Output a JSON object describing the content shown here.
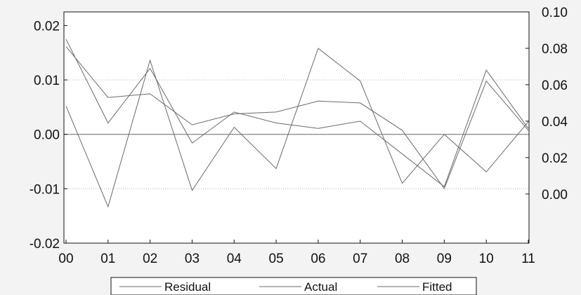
{
  "chart_data": {
    "type": "line",
    "title": "",
    "categories": [
      "00",
      "01",
      "02",
      "03",
      "04",
      "05",
      "06",
      "07",
      "08",
      "09",
      "10",
      "11"
    ],
    "left_axis": {
      "ticks": [
        "-0.02",
        "-0.01",
        "0.00",
        "0.01",
        "0.02"
      ],
      "range": [
        -0.02,
        0.0225
      ]
    },
    "right_axis": {
      "ticks": [
        "0.00",
        "0.02",
        "0.04",
        "0.06",
        "0.08",
        "0.10"
      ],
      "range": [
        -0.027,
        0.1
      ]
    },
    "gridlines": [
      0.01,
      0.0,
      -0.01
    ],
    "zero_line": 0.0,
    "legend_position": "bottom",
    "series": [
      {
        "name": "Residual",
        "axis": "left",
        "values": [
          0.0052,
          -0.0133,
          0.0136,
          -0.0103,
          0.0013,
          -0.0063,
          0.0158,
          0.0098,
          -0.009,
          0.0,
          -0.0069,
          0.0023
        ]
      },
      {
        "name": "Actual",
        "axis": "right",
        "values": [
          0.085,
          0.039,
          0.069,
          0.028,
          0.045,
          0.039,
          0.036,
          0.04,
          0.022,
          0.004,
          0.068,
          0.036
        ]
      },
      {
        "name": "Fitted",
        "axis": "right",
        "values": [
          0.081,
          0.053,
          0.055,
          0.038,
          0.044,
          0.045,
          0.051,
          0.05,
          0.035,
          0.003,
          0.062,
          0.035
        ]
      }
    ],
    "colors": {
      "line": "#6a6a6a",
      "frame": "#111111",
      "grid": "#b5b5b5",
      "background": "#ffffff"
    }
  }
}
